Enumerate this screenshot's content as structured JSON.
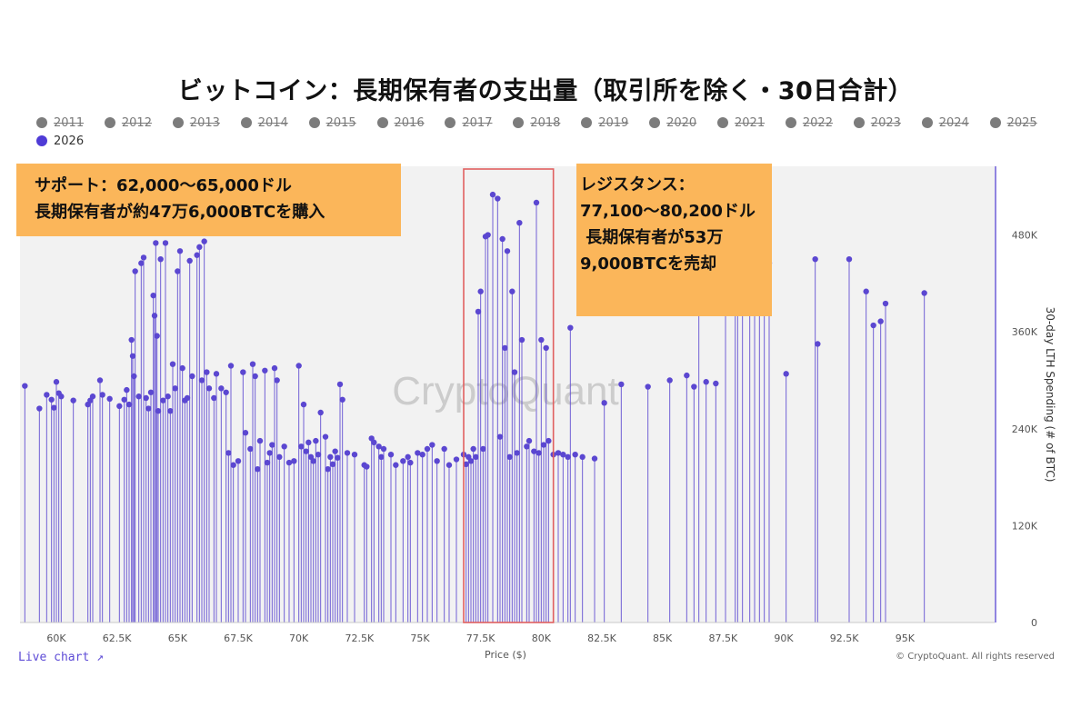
{
  "title": "ビットコイン：長期保有者の支出量（取引所を除く・30日合計）",
  "legend": [
    {
      "label": "2011",
      "active": false
    },
    {
      "label": "2012",
      "active": false
    },
    {
      "label": "2013",
      "active": false
    },
    {
      "label": "2014",
      "active": false
    },
    {
      "label": "2015",
      "active": false
    },
    {
      "label": "2016",
      "active": false
    },
    {
      "label": "2017",
      "active": false
    },
    {
      "label": "2018",
      "active": false
    },
    {
      "label": "2019",
      "active": false
    },
    {
      "label": "2020",
      "active": false
    },
    {
      "label": "2021",
      "active": false
    },
    {
      "label": "2022",
      "active": false
    },
    {
      "label": "2023",
      "active": false
    },
    {
      "label": "2024",
      "active": false
    },
    {
      "label": "2025",
      "active": false
    },
    {
      "label": "2026",
      "active": true
    }
  ],
  "callouts": {
    "support": [
      "サポート：62,000〜65,000ドル",
      "長期保有者が約47万6,000BTCを購入"
    ],
    "resistance": [
      "レジスタンス：",
      "77,100〜80,200ドル",
      " 長期保有者が53万",
      "9,000BTCを売却"
    ]
  },
  "watermark": "CryptoQuant",
  "live_chart_label": "Live chart ↗",
  "copyright": "© CryptoQuant. All rights reserved",
  "colors": {
    "series": "#5b47d1",
    "highlight_box": "#e06060",
    "callout": "#fbb65a",
    "plot_bg": "#f2f2f2"
  },
  "chart_data": {
    "type": "scatter",
    "xlabel": "Price ($)",
    "ylabel": "30-day LTH Spending (# of BTC)",
    "xlim": [
      58500,
      98700
    ],
    "ylim": [
      0,
      565000
    ],
    "x_ticks": [
      60000,
      62500,
      65000,
      67500,
      70000,
      72500,
      75000,
      77500,
      80000,
      82500,
      85000,
      87500,
      90000,
      92500,
      95000
    ],
    "x_tick_labels": [
      "60K",
      "62.5K",
      "65K",
      "67.5K",
      "70K",
      "72.5K",
      "75K",
      "77.5K",
      "80K",
      "82.5K",
      "85K",
      "87.5K",
      "90K",
      "92.5K",
      "95K"
    ],
    "y_ticks": [
      0,
      120000,
      240000,
      360000,
      480000
    ],
    "y_tick_labels": [
      "0",
      "120K",
      "240K",
      "360K",
      "480K"
    ],
    "y_axis_side": "right",
    "grid": false,
    "highlight_range": [
      76800,
      80500
    ],
    "series": [
      {
        "name": "2026",
        "points": [
          [
            58700,
            293000
          ],
          [
            59300,
            265000
          ],
          [
            59600,
            282000
          ],
          [
            59800,
            276000
          ],
          [
            59900,
            266000
          ],
          [
            60000,
            298000
          ],
          [
            60100,
            284000
          ],
          [
            60200,
            280000
          ],
          [
            60700,
            275000
          ],
          [
            61300,
            270000
          ],
          [
            61400,
            275000
          ],
          [
            61500,
            280000
          ],
          [
            61800,
            300000
          ],
          [
            61900,
            282000
          ],
          [
            62200,
            277000
          ],
          [
            62600,
            268000
          ],
          [
            62800,
            276000
          ],
          [
            62900,
            288000
          ],
          [
            63000,
            270000
          ],
          [
            63100,
            350000
          ],
          [
            63150,
            330000
          ],
          [
            63200,
            305000
          ],
          [
            63250,
            435000
          ],
          [
            63400,
            280000
          ],
          [
            63500,
            445000
          ],
          [
            63600,
            452000
          ],
          [
            63700,
            278000
          ],
          [
            63800,
            265000
          ],
          [
            63900,
            285000
          ],
          [
            64000,
            405000
          ],
          [
            64050,
            380000
          ],
          [
            64100,
            470000
          ],
          [
            64150,
            355000
          ],
          [
            64200,
            262000
          ],
          [
            64300,
            450000
          ],
          [
            64400,
            275000
          ],
          [
            64500,
            470000
          ],
          [
            64600,
            280000
          ],
          [
            64700,
            262000
          ],
          [
            64800,
            320000
          ],
          [
            64900,
            290000
          ],
          [
            65000,
            435000
          ],
          [
            65100,
            460000
          ],
          [
            65200,
            315000
          ],
          [
            65300,
            275000
          ],
          [
            65400,
            278000
          ],
          [
            65500,
            448000
          ],
          [
            65600,
            305000
          ],
          [
            65800,
            455000
          ],
          [
            65900,
            465000
          ],
          [
            66000,
            300000
          ],
          [
            66100,
            472000
          ],
          [
            66200,
            310000
          ],
          [
            66300,
            290000
          ],
          [
            66500,
            278000
          ],
          [
            66600,
            308000
          ],
          [
            66800,
            290000
          ],
          [
            67000,
            285000
          ],
          [
            67100,
            210000
          ],
          [
            67200,
            318000
          ],
          [
            67300,
            195000
          ],
          [
            67500,
            200000
          ],
          [
            67700,
            310000
          ],
          [
            67800,
            235000
          ],
          [
            68000,
            215000
          ],
          [
            68100,
            320000
          ],
          [
            68200,
            305000
          ],
          [
            68300,
            190000
          ],
          [
            68400,
            225000
          ],
          [
            68600,
            312000
          ],
          [
            68700,
            198000
          ],
          [
            68800,
            210000
          ],
          [
            68900,
            220000
          ],
          [
            69000,
            315000
          ],
          [
            69100,
            300000
          ],
          [
            69200,
            205000
          ],
          [
            69400,
            218000
          ],
          [
            69600,
            198000
          ],
          [
            69800,
            200000
          ],
          [
            70000,
            318000
          ],
          [
            70100,
            218000
          ],
          [
            70200,
            270000
          ],
          [
            70300,
            212000
          ],
          [
            70400,
            223000
          ],
          [
            70500,
            205000
          ],
          [
            70600,
            200000
          ],
          [
            70700,
            225000
          ],
          [
            70800,
            208000
          ],
          [
            70900,
            260000
          ],
          [
            71100,
            230000
          ],
          [
            71200,
            190000
          ],
          [
            71300,
            205000
          ],
          [
            71400,
            196000
          ],
          [
            71500,
            212000
          ],
          [
            71600,
            204000
          ],
          [
            71700,
            295000
          ],
          [
            71800,
            276000
          ],
          [
            72000,
            210000
          ],
          [
            72300,
            208000
          ],
          [
            72700,
            195000
          ],
          [
            72800,
            193000
          ],
          [
            73000,
            228000
          ],
          [
            73100,
            223000
          ],
          [
            73300,
            218000
          ],
          [
            73400,
            205000
          ],
          [
            73500,
            215000
          ],
          [
            73800,
            208000
          ],
          [
            74000,
            195000
          ],
          [
            74300,
            200000
          ],
          [
            74500,
            205000
          ],
          [
            74600,
            198000
          ],
          [
            74900,
            210000
          ],
          [
            75100,
            208000
          ],
          [
            75300,
            215000
          ],
          [
            75500,
            220000
          ],
          [
            75700,
            200000
          ],
          [
            76000,
            215000
          ],
          [
            76200,
            195000
          ],
          [
            76500,
            202000
          ],
          [
            76800,
            208000
          ],
          [
            76900,
            196000
          ],
          [
            77000,
            205000
          ],
          [
            77100,
            200000
          ],
          [
            77200,
            215000
          ],
          [
            77300,
            205000
          ],
          [
            77400,
            385000
          ],
          [
            77500,
            410000
          ],
          [
            77600,
            215000
          ],
          [
            77700,
            478000
          ],
          [
            77800,
            480000
          ],
          [
            78000,
            530000
          ],
          [
            78200,
            525000
          ],
          [
            78300,
            230000
          ],
          [
            78400,
            475000
          ],
          [
            78500,
            340000
          ],
          [
            78600,
            460000
          ],
          [
            78700,
            205000
          ],
          [
            78800,
            410000
          ],
          [
            78900,
            310000
          ],
          [
            79000,
            210000
          ],
          [
            79100,
            495000
          ],
          [
            79200,
            350000
          ],
          [
            79400,
            218000
          ],
          [
            79500,
            225000
          ],
          [
            79700,
            212000
          ],
          [
            79800,
            520000
          ],
          [
            79900,
            210000
          ],
          [
            80000,
            350000
          ],
          [
            80100,
            220000
          ],
          [
            80200,
            340000
          ],
          [
            80300,
            225000
          ],
          [
            80500,
            208000
          ],
          [
            80700,
            210000
          ],
          [
            80900,
            208000
          ],
          [
            81100,
            205000
          ],
          [
            81200,
            365000
          ],
          [
            81400,
            208000
          ],
          [
            81700,
            205000
          ],
          [
            82200,
            203000
          ],
          [
            82600,
            272000
          ],
          [
            83300,
            295000
          ],
          [
            84400,
            292000
          ],
          [
            85300,
            300000
          ],
          [
            86000,
            306000
          ],
          [
            86300,
            292000
          ],
          [
            86500,
            520000
          ],
          [
            86800,
            298000
          ],
          [
            87200,
            296000
          ],
          [
            87600,
            460000
          ],
          [
            88000,
            430000
          ],
          [
            88100,
            440000
          ],
          [
            88300,
            455000
          ],
          [
            88600,
            412000
          ],
          [
            88800,
            480000
          ],
          [
            89000,
            490000
          ],
          [
            89200,
            408000
          ],
          [
            89400,
            445000
          ],
          [
            90100,
            308000
          ],
          [
            91300,
            450000
          ],
          [
            91400,
            345000
          ],
          [
            92700,
            450000
          ],
          [
            93400,
            410000
          ],
          [
            93700,
            368000
          ],
          [
            94000,
            373000
          ],
          [
            94200,
            395000
          ],
          [
            95800,
            408000
          ]
        ]
      }
    ]
  }
}
